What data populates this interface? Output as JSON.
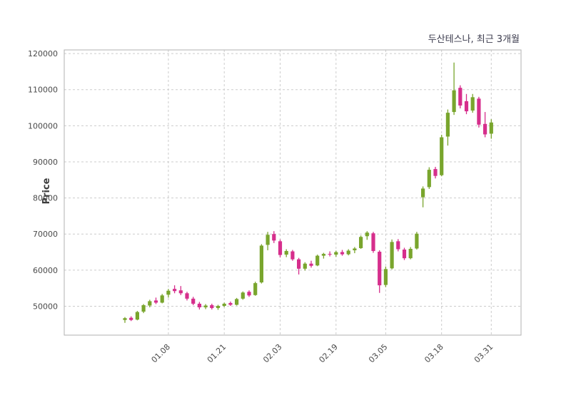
{
  "figure": {
    "title": "두산테스나, 최근 3개월",
    "ylabel": "Price"
  },
  "colors": {
    "title-text": "#3b3b4d",
    "axis-text": "#3c3c3c",
    "tick-text": "#4a4a4a"
  },
  "chart_data": {
    "type": "candlestick",
    "title": "두산테스나, 최근 3개월",
    "xlabel": "",
    "ylabel": "Price",
    "ylim": [
      42000,
      121000
    ],
    "y_ticks": [
      50000,
      60000,
      70000,
      80000,
      90000,
      100000,
      110000,
      120000
    ],
    "x_tick_labels": [
      "01.08",
      "01.21",
      "02.03",
      "02.19",
      "03.05",
      "03.18",
      "03.31"
    ],
    "x_tick_indices": [
      7,
      16,
      25,
      34,
      42,
      51,
      59
    ],
    "grid": "dashed",
    "legend": "none",
    "up_color": "#79a52d",
    "down_color": "#d62e8c",
    "grid_color": "#cccccc",
    "border_color": "#b0b0b0",
    "n_candles": 60,
    "candles_format": [
      "open",
      "high",
      "low",
      "close"
    ],
    "candles": [
      [
        46200,
        47000,
        45400,
        46700
      ],
      [
        46800,
        47200,
        45900,
        46200
      ],
      [
        46300,
        48700,
        46100,
        48400
      ],
      [
        48500,
        50600,
        48100,
        50300
      ],
      [
        50200,
        51800,
        49700,
        51400
      ],
      [
        51600,
        52400,
        50600,
        51000
      ],
      [
        51000,
        53400,
        50800,
        53000
      ],
      [
        53200,
        54800,
        52400,
        54300
      ],
      [
        54800,
        55800,
        53600,
        54200
      ],
      [
        54400,
        55600,
        53100,
        53600
      ],
      [
        53600,
        54000,
        51600,
        52100
      ],
      [
        52100,
        52600,
        50300,
        50700
      ],
      [
        50700,
        51200,
        49100,
        49700
      ],
      [
        49700,
        50600,
        49200,
        50200
      ],
      [
        50300,
        50700,
        49100,
        49500
      ],
      [
        49500,
        50400,
        49000,
        50100
      ],
      [
        50100,
        51000,
        49800,
        50700
      ],
      [
        50900,
        51300,
        50100,
        50400
      ],
      [
        50400,
        52300,
        50200,
        52000
      ],
      [
        52100,
        54100,
        51800,
        53800
      ],
      [
        54000,
        54400,
        52600,
        53000
      ],
      [
        53100,
        56800,
        52900,
        56400
      ],
      [
        56600,
        67200,
        56300,
        66800
      ],
      [
        67000,
        70600,
        65500,
        69800
      ],
      [
        70000,
        70800,
        67500,
        68200
      ],
      [
        68000,
        68500,
        63500,
        64200
      ],
      [
        64300,
        65800,
        63600,
        65300
      ],
      [
        65200,
        65600,
        62600,
        63000
      ],
      [
        63000,
        63400,
        58800,
        60400
      ],
      [
        60400,
        62200,
        59900,
        61800
      ],
      [
        61800,
        62600,
        60700,
        61200
      ],
      [
        61300,
        64300,
        61100,
        64000
      ],
      [
        64000,
        64800,
        63200,
        64500
      ],
      [
        64500,
        65200,
        63800,
        64300
      ],
      [
        64300,
        65400,
        63700,
        65000
      ],
      [
        65000,
        65600,
        64000,
        64400
      ],
      [
        64400,
        65800,
        64100,
        65400
      ],
      [
        65500,
        66400,
        64700,
        66000
      ],
      [
        66100,
        69600,
        65900,
        69200
      ],
      [
        69400,
        70800,
        68400,
        70400
      ],
      [
        70200,
        70600,
        64800,
        65300
      ],
      [
        65100,
        65500,
        53700,
        55800
      ],
      [
        55900,
        61000,
        55300,
        60300
      ],
      [
        60500,
        68500,
        60200,
        67800
      ],
      [
        68000,
        68600,
        65200,
        65800
      ],
      [
        65700,
        66200,
        62800,
        63300
      ],
      [
        63300,
        66400,
        63000,
        65900
      ],
      [
        66000,
        70600,
        65700,
        70100
      ],
      [
        80200,
        83200,
        77400,
        82600
      ],
      [
        83000,
        88500,
        82500,
        87800
      ],
      [
        88000,
        88600,
        85400,
        86100
      ],
      [
        86300,
        97500,
        86000,
        96800
      ],
      [
        97000,
        104500,
        94500,
        103600
      ],
      [
        103800,
        117500,
        103000,
        109800
      ],
      [
        110500,
        111200,
        104800,
        105600
      ],
      [
        106800,
        108800,
        103200,
        104000
      ],
      [
        104200,
        108800,
        103600,
        107900
      ],
      [
        107500,
        108000,
        99500,
        100300
      ],
      [
        100500,
        103800,
        96800,
        97600
      ],
      [
        97800,
        101800,
        96400,
        100900
      ]
    ]
  }
}
